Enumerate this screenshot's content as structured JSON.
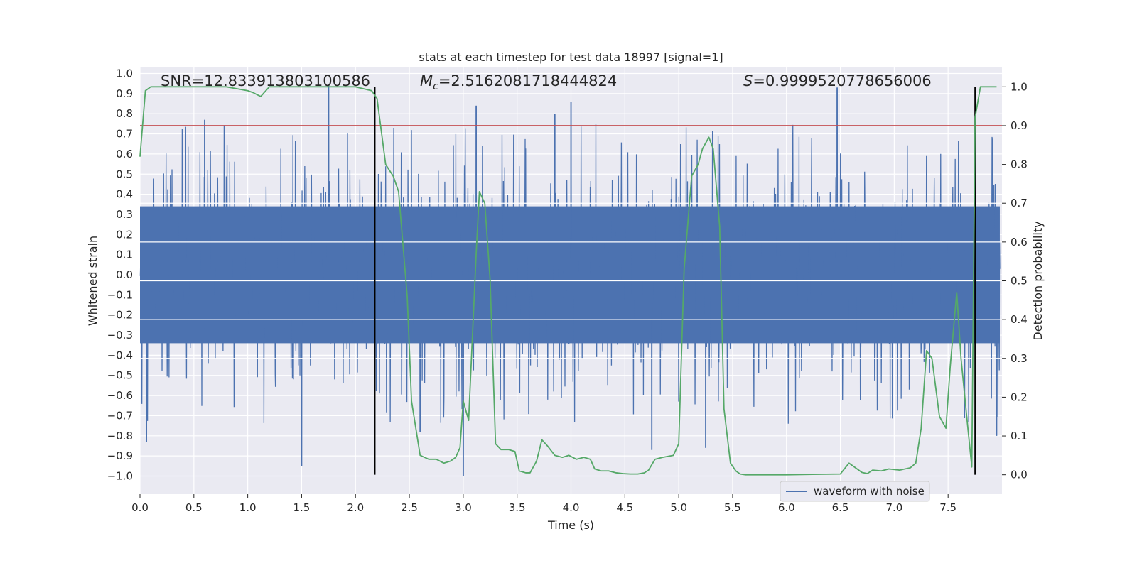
{
  "chart_data": {
    "type": "line",
    "title": "stats at each timestep for test data 18997 [signal=1]",
    "xlabel": "Time (s)",
    "ylabel_left": "Whitened strain",
    "ylabel_right": "Detection probability",
    "xlim": [
      0.0,
      8.0
    ],
    "ylim_left": [
      -1.09,
      1.03
    ],
    "ylim_right": [
      -0.05,
      1.05
    ],
    "x_ticks": [
      0.0,
      0.5,
      1.0,
      1.5,
      2.0,
      2.5,
      3.0,
      3.5,
      4.0,
      4.5,
      5.0,
      5.5,
      6.0,
      6.5,
      7.0,
      7.5
    ],
    "x_tick_labels": [
      "0.0",
      "0.5",
      "1.0",
      "1.5",
      "2.0",
      "2.5",
      "3.0",
      "3.5",
      "4.0",
      "4.5",
      "5.0",
      "5.5",
      "6.0",
      "6.5",
      "7.0",
      "7.5"
    ],
    "y_left_ticks": [
      1.0,
      0.9,
      0.8,
      0.7,
      0.6,
      0.5,
      0.4,
      0.3,
      0.2,
      0.1,
      0.0,
      -0.1,
      -0.2,
      -0.3,
      -0.4,
      -0.5,
      -0.6,
      -0.7,
      -0.8,
      -0.9,
      -1.0
    ],
    "y_left_tick_labels": [
      "1.0",
      "0.9",
      "0.8",
      "0.7",
      "0.6",
      "0.5",
      "0.4",
      "0.3",
      "0.2",
      "0.1",
      "0.0",
      "−0.1",
      "−0.2",
      "−0.3",
      "−0.4",
      "−0.5",
      "−0.6",
      "−0.7",
      "−0.8",
      "−0.9",
      "−1.0"
    ],
    "y_right_ticks": [
      1.0,
      0.9,
      0.8,
      0.7,
      0.6,
      0.5,
      0.4,
      0.3,
      0.2,
      0.1,
      0.0
    ],
    "y_right_tick_labels": [
      "1.0",
      "0.9",
      "0.8",
      "0.7",
      "0.6",
      "0.5",
      "0.4",
      "0.3",
      "0.2",
      "0.1",
      "0.0"
    ],
    "annotations": {
      "snr": "SNR=12.833913803100586",
      "mc_symbol": "M",
      "mc_subscript": "c",
      "mc_value": "=2.5162081718444824",
      "s_symbol": "S",
      "s_value": "=0.9999520778656006"
    },
    "threshold": {
      "axis": "right",
      "value": 0.9,
      "color": "#c44e52"
    },
    "event_lines_x": [
      2.18,
      7.75
    ],
    "series": [
      {
        "name": "waveform with noise",
        "axis": "left",
        "color": "#4c72b0",
        "kind": "noise-strain",
        "envelope_typical": [
          -0.35,
          0.35
        ],
        "peak_spikes": [
          {
            "x": 0.06,
            "y": -0.83
          },
          {
            "x": 0.6,
            "y": 0.77
          },
          {
            "x": 1.5,
            "y": -0.95
          },
          {
            "x": 1.75,
            "y": 0.94
          },
          {
            "x": 2.6,
            "y": -0.78
          },
          {
            "x": 3.0,
            "y": -1.0
          },
          {
            "x": 3.12,
            "y": 0.84
          },
          {
            "x": 3.85,
            "y": 0.8
          },
          {
            "x": 4.0,
            "y": 0.86
          },
          {
            "x": 4.75,
            "y": -0.87
          },
          {
            "x": 5.25,
            "y": -0.86
          },
          {
            "x": 6.47,
            "y": 0.93
          },
          {
            "x": 7.95,
            "y": -0.8
          }
        ]
      },
      {
        "name": "detection probability",
        "axis": "right",
        "color": "#55a868",
        "x": [
          0.0,
          0.05,
          0.1,
          0.3,
          0.5,
          0.8,
          0.9,
          1.0,
          1.05,
          1.12,
          1.2,
          1.4,
          1.6,
          1.8,
          2.0,
          2.15,
          2.2,
          2.28,
          2.35,
          2.4,
          2.48,
          2.52,
          2.6,
          2.68,
          2.75,
          2.82,
          2.88,
          2.93,
          2.97,
          3.0,
          3.05,
          3.12,
          3.15,
          3.2,
          3.25,
          3.3,
          3.35,
          3.42,
          3.48,
          3.52,
          3.58,
          3.62,
          3.68,
          3.73,
          3.78,
          3.85,
          3.92,
          3.98,
          4.05,
          4.12,
          4.18,
          4.22,
          4.28,
          4.35,
          4.42,
          4.48,
          4.55,
          4.62,
          4.68,
          4.72,
          4.78,
          4.85,
          4.95,
          5.0,
          5.05,
          5.12,
          5.18,
          5.22,
          5.28,
          5.32,
          5.38,
          5.42,
          5.48,
          5.53,
          5.57,
          5.62,
          5.68,
          5.75,
          6.0,
          6.5,
          6.58,
          6.62,
          6.7,
          6.75,
          6.8,
          6.88,
          6.95,
          7.05,
          7.15,
          7.2,
          7.25,
          7.3,
          7.35,
          7.42,
          7.48,
          7.52,
          7.58,
          7.62,
          7.68,
          7.72,
          7.75,
          7.8,
          7.85,
          7.88,
          7.95
        ],
        "y": [
          0.82,
          0.99,
          1.0,
          1.0,
          1.0,
          1.0,
          0.995,
          0.99,
          0.985,
          0.975,
          1.0,
          1.0,
          1.0,
          1.0,
          1.0,
          0.99,
          0.97,
          0.8,
          0.77,
          0.73,
          0.46,
          0.19,
          0.05,
          0.04,
          0.04,
          0.03,
          0.035,
          0.045,
          0.07,
          0.19,
          0.14,
          0.57,
          0.73,
          0.7,
          0.5,
          0.08,
          0.065,
          0.065,
          0.06,
          0.01,
          0.005,
          0.005,
          0.035,
          0.09,
          0.075,
          0.05,
          0.045,
          0.05,
          0.04,
          0.045,
          0.04,
          0.015,
          0.01,
          0.01,
          0.005,
          0.003,
          0.002,
          0.002,
          0.005,
          0.012,
          0.04,
          0.045,
          0.05,
          0.08,
          0.53,
          0.77,
          0.8,
          0.84,
          0.87,
          0.84,
          0.64,
          0.17,
          0.03,
          0.01,
          0.002,
          0.0,
          0.0,
          0.0,
          0.0,
          0.002,
          0.03,
          0.022,
          0.006,
          0.003,
          0.012,
          0.01,
          0.015,
          0.012,
          0.018,
          0.03,
          0.12,
          0.32,
          0.3,
          0.15,
          0.12,
          0.28,
          0.47,
          0.3,
          0.13,
          0.02,
          0.92,
          1.0,
          1.0,
          1.0,
          1.0
        ]
      }
    ],
    "legend": {
      "location": "lower-right",
      "entries": [
        "waveform with noise"
      ]
    }
  }
}
